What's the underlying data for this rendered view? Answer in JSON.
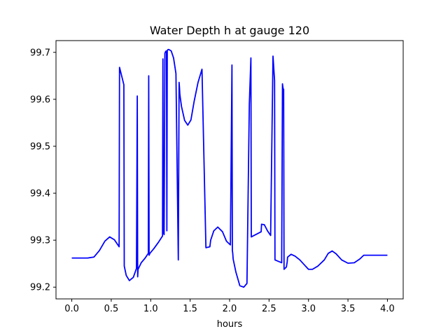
{
  "chart_data": {
    "type": "line",
    "title": "Water Depth h at gauge 120",
    "xlabel": "hours",
    "ylabel": "",
    "xlim": [
      -0.2,
      4.2
    ],
    "ylim": [
      99.175,
      99.725
    ],
    "x_ticks": [
      0.0,
      0.5,
      1.0,
      1.5,
      2.0,
      2.5,
      3.0,
      3.5,
      4.0
    ],
    "x_tick_labels": [
      "0.0",
      "0.5",
      "1.0",
      "1.5",
      "2.0",
      "2.5",
      "3.0",
      "3.5",
      "4.0"
    ],
    "y_ticks": [
      99.2,
      99.3,
      99.4,
      99.5,
      99.6,
      99.7
    ],
    "y_tick_labels": [
      "99.2",
      "99.3",
      "99.4",
      "99.5",
      "99.6",
      "99.7"
    ],
    "grid": false,
    "series": [
      {
        "color": "#0000ff",
        "x": [
          0.0,
          0.1,
          0.2,
          0.28,
          0.35,
          0.42,
          0.48,
          0.54,
          0.6,
          0.605,
          0.66,
          0.665,
          0.69,
          0.73,
          0.78,
          0.82,
          0.83,
          0.835,
          0.84,
          0.88,
          0.93,
          0.97,
          0.975,
          0.98,
          0.99,
          1.04,
          1.1,
          1.15,
          1.155,
          1.16,
          1.17,
          1.18,
          1.19,
          1.2,
          1.205,
          1.21,
          1.215,
          1.22,
          1.23,
          1.26,
          1.29,
          1.32,
          1.35,
          1.36,
          1.365,
          1.37,
          1.39,
          1.43,
          1.47,
          1.51,
          1.55,
          1.6,
          1.65,
          1.7,
          1.75,
          1.76,
          1.8,
          1.85,
          1.91,
          1.96,
          2.01,
          2.03,
          2.035,
          2.04,
          2.045,
          2.08,
          2.13,
          2.18,
          2.22,
          2.25,
          2.27,
          2.275,
          2.4,
          2.405,
          2.44,
          2.48,
          2.52,
          2.55,
          2.57,
          2.575,
          2.66,
          2.67,
          2.675,
          2.68,
          2.685,
          2.69,
          2.72,
          2.73,
          2.735,
          2.78,
          2.83,
          2.89,
          2.95,
          3.0,
          3.05,
          3.12,
          3.2,
          3.25,
          3.3,
          3.35,
          3.42,
          3.5,
          3.58,
          3.65,
          3.7,
          3.76,
          3.83,
          3.88,
          3.93,
          3.97,
          4.0
        ],
        "y": [
          99.262,
          99.262,
          99.262,
          99.264,
          99.278,
          99.298,
          99.307,
          99.301,
          99.286,
          99.668,
          99.631,
          99.245,
          99.225,
          99.214,
          99.221,
          99.24,
          99.607,
          99.222,
          99.238,
          99.252,
          99.262,
          99.272,
          99.65,
          99.268,
          99.272,
          99.282,
          99.296,
          99.309,
          99.686,
          99.318,
          99.312,
          99.698,
          99.702,
          99.703,
          99.32,
          99.703,
          99.705,
          99.706,
          99.706,
          99.703,
          99.688,
          99.655,
          99.258,
          99.636,
          99.625,
          99.61,
          99.585,
          99.555,
          99.545,
          99.556,
          99.595,
          99.636,
          99.664,
          99.284,
          99.286,
          99.3,
          99.32,
          99.328,
          99.318,
          99.298,
          99.29,
          99.673,
          99.278,
          99.272,
          99.26,
          99.232,
          99.203,
          99.2,
          99.208,
          99.59,
          99.688,
          99.307,
          99.318,
          99.334,
          99.333,
          99.32,
          99.31,
          99.692,
          99.64,
          99.258,
          99.252,
          99.633,
          99.626,
          99.622,
          99.621,
          99.238,
          99.243,
          99.254,
          99.264,
          99.27,
          99.266,
          99.258,
          99.247,
          99.238,
          99.238,
          99.245,
          99.258,
          99.272,
          99.277,
          99.271,
          99.258,
          99.251,
          99.252,
          99.26,
          99.268,
          99.268,
          99.268,
          99.268,
          99.268,
          99.268,
          99.268
        ]
      }
    ]
  }
}
